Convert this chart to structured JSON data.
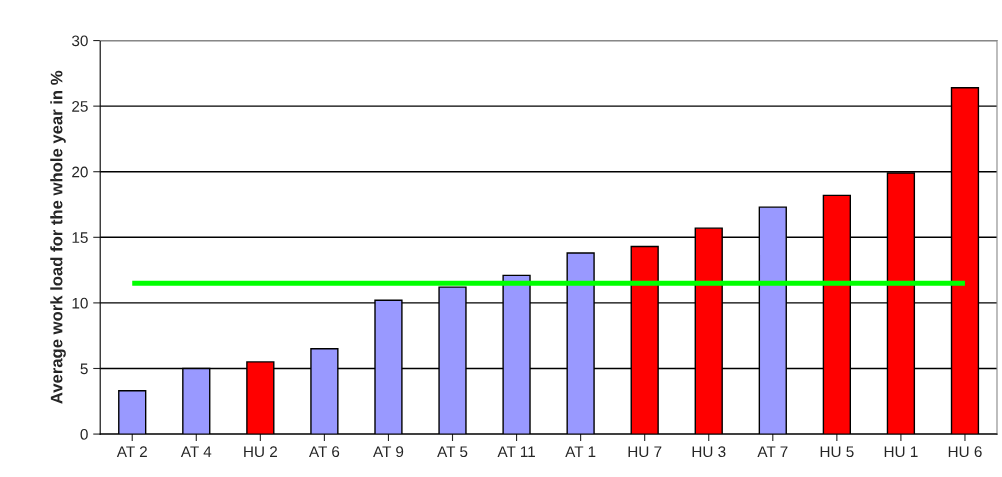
{
  "chart_data": {
    "type": "bar",
    "ylabel": "Average work load for the whole year in %",
    "categories": [
      "AT 2",
      "AT 4",
      "HU 2",
      "AT 6",
      "AT 9",
      "AT 5",
      "AT 11",
      "AT 1",
      "HU 7",
      "HU 3",
      "AT 7",
      "HU 5",
      "HU 1",
      "HU 6"
    ],
    "values": [
      3.3,
      5.0,
      5.5,
      6.5,
      10.2,
      11.2,
      12.1,
      13.8,
      14.3,
      15.7,
      17.3,
      18.2,
      19.9,
      26.4
    ],
    "colors": [
      "#9999ff",
      "#9999ff",
      "#ff0000",
      "#9999ff",
      "#9999ff",
      "#9999ff",
      "#9999ff",
      "#9999ff",
      "#ff0000",
      "#ff0000",
      "#9999ff",
      "#ff0000",
      "#ff0000",
      "#ff0000"
    ],
    "ylim": [
      0,
      30
    ],
    "yticks": [
      0,
      5,
      10,
      15,
      20,
      25,
      30
    ],
    "grid": "y",
    "ref_lines": [
      {
        "axis": "y",
        "value": 11.5,
        "label": null,
        "color": "#00ff00"
      }
    ]
  }
}
